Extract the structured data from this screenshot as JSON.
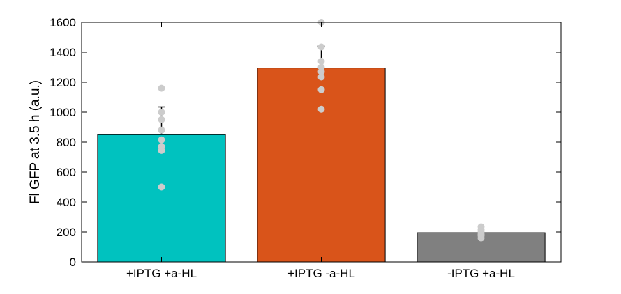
{
  "chart_data": {
    "type": "bar",
    "categories": [
      "+IPTG +a-HL",
      "+IPTG -a-HL",
      "-IPTG +a-HL"
    ],
    "values": [
      850,
      1295,
      195
    ],
    "error_bars": [
      185,
      145,
      0
    ],
    "bar_colors": [
      "#00c2bf",
      "#d9541a",
      "#808080"
    ],
    "point_color": "#cccccc",
    "points": [
      [
        1160,
        1000,
        950,
        880,
        815,
        770,
        745,
        500
      ],
      [
        1600,
        1435,
        1340,
        1300,
        1270,
        1235,
        1150,
        1020
      ],
      [
        235,
        215,
        200,
        185,
        175,
        160
      ]
    ],
    "title": "",
    "xlabel": "",
    "ylabel": "Fl GFP at 3.5 h (a.u.)",
    "ylim": [
      0,
      1600
    ],
    "yticks": [
      0,
      200,
      400,
      600,
      800,
      1000,
      1200,
      1400,
      1600
    ],
    "grid": false,
    "legend": "none"
  }
}
